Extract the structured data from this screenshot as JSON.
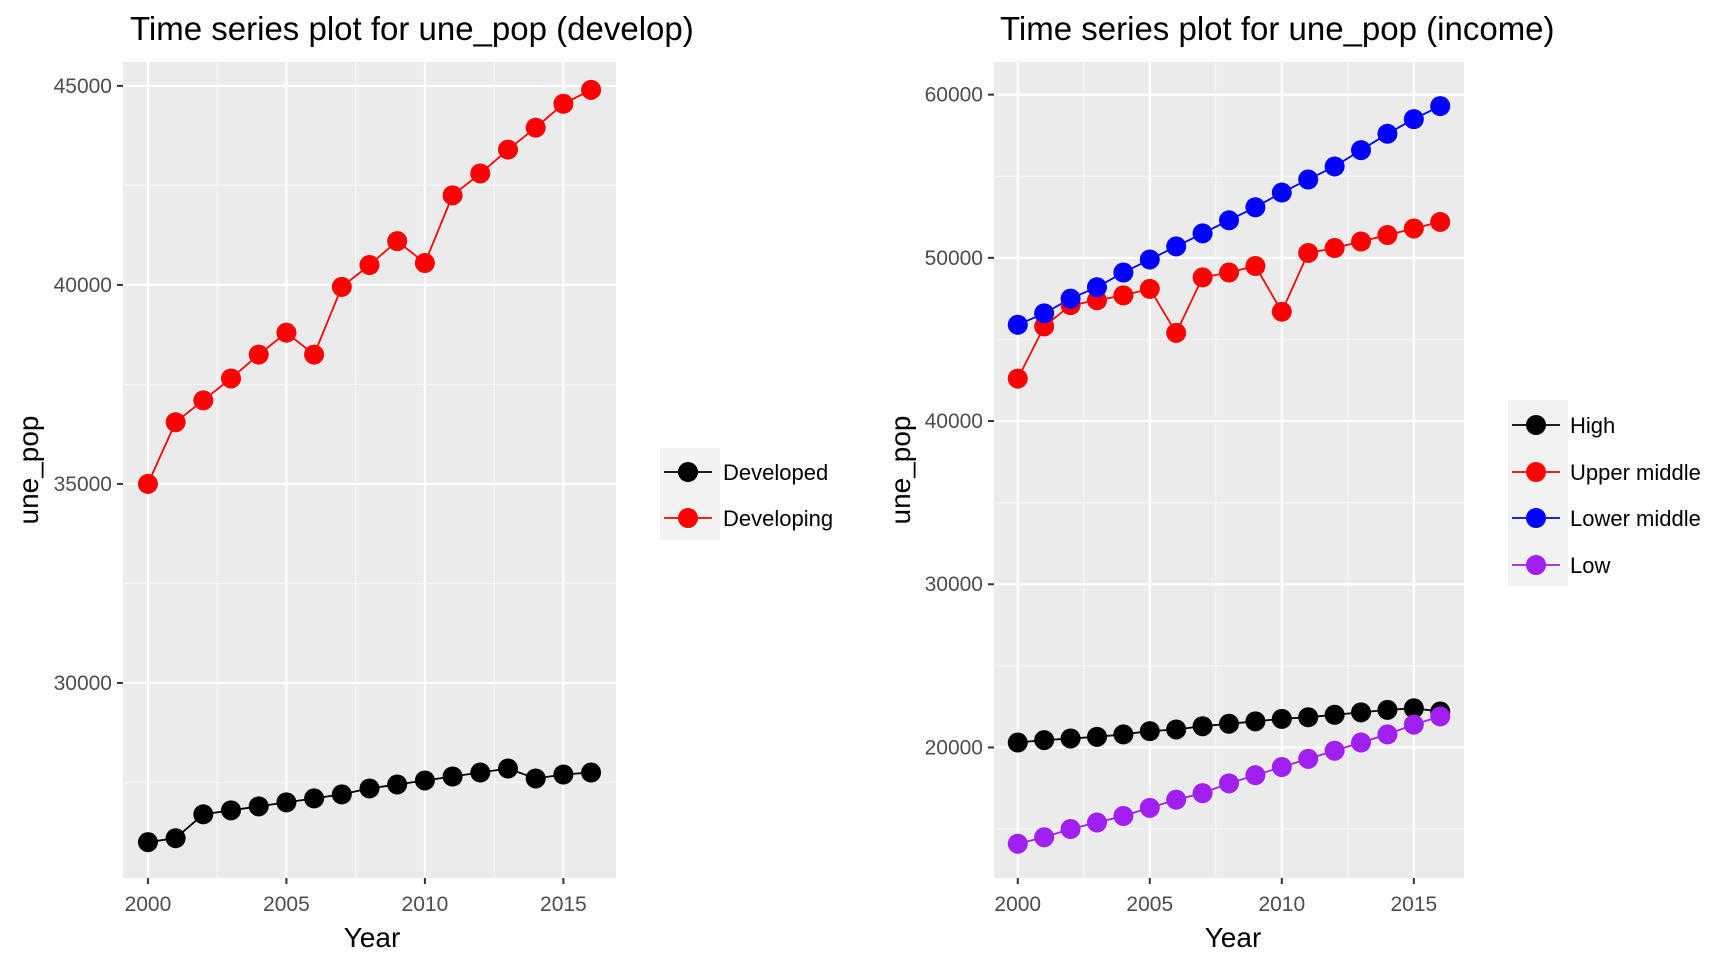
{
  "chart_data": [
    {
      "type": "line",
      "title": "Time series plot for une_pop (develop)",
      "xlabel": "Year",
      "ylabel": "une_pop",
      "xlim": [
        1999.1,
        2016.9
      ],
      "ylim": [
        25100,
        45600
      ],
      "x_ticks": [
        2000,
        2005,
        2010,
        2015
      ],
      "y_ticks": [
        30000,
        35000,
        40000,
        45000
      ],
      "grid": true,
      "legend_position": "right",
      "x": [
        2000,
        2001,
        2002,
        2003,
        2004,
        2005,
        2006,
        2007,
        2008,
        2009,
        2010,
        2011,
        2012,
        2013,
        2014,
        2015,
        2016
      ],
      "series": [
        {
          "name": "Developed",
          "color": "#000000",
          "values": [
            26000,
            26100,
            26700,
            26800,
            26900,
            27000,
            27100,
            27200,
            27350,
            27450,
            27550,
            27650,
            27750,
            27850,
            27600,
            27700,
            27750
          ]
        },
        {
          "name": "Developing",
          "color": "#ff0000",
          "values": [
            35000,
            36550,
            37100,
            37650,
            38250,
            38800,
            38250,
            39950,
            40500,
            41100,
            40550,
            42250,
            42800,
            43400,
            43950,
            44550,
            44900
          ]
        }
      ]
    },
    {
      "type": "line",
      "title": "Time series plot for une_pop (income)",
      "xlabel": "Year",
      "ylabel": "une_pop",
      "xlim": [
        1999.1,
        2016.9
      ],
      "ylim": [
        12000,
        62000
      ],
      "x_ticks": [
        2000,
        2005,
        2010,
        2015
      ],
      "y_ticks": [
        20000,
        30000,
        40000,
        50000,
        60000
      ],
      "grid": true,
      "legend_position": "right",
      "x": [
        2000,
        2001,
        2002,
        2003,
        2004,
        2005,
        2006,
        2007,
        2008,
        2009,
        2010,
        2011,
        2012,
        2013,
        2014,
        2015,
        2016
      ],
      "series": [
        {
          "name": "High",
          "color": "#000000",
          "values": [
            20300,
            20450,
            20550,
            20650,
            20800,
            21000,
            21100,
            21300,
            21450,
            21600,
            21750,
            21850,
            22000,
            22150,
            22300,
            22400,
            22200
          ]
        },
        {
          "name": "Upper middle",
          "color": "#ff0000",
          "values": [
            42600,
            45800,
            47100,
            47400,
            47700,
            48100,
            45400,
            48800,
            49100,
            49500,
            46700,
            50300,
            50600,
            51000,
            51400,
            51800,
            52200
          ]
        },
        {
          "name": "Lower middle",
          "color": "#0000ff",
          "values": [
            45900,
            46600,
            47500,
            48200,
            49100,
            49900,
            50700,
            51500,
            52300,
            53100,
            54000,
            54800,
            55600,
            56600,
            57600,
            58500,
            59300
          ]
        },
        {
          "name": "Low",
          "color": "#a020f0",
          "values": [
            14100,
            14500,
            15000,
            15400,
            15800,
            16300,
            16800,
            17200,
            17800,
            18300,
            18800,
            19300,
            19800,
            20300,
            20800,
            21400,
            21900
          ]
        }
      ]
    }
  ]
}
